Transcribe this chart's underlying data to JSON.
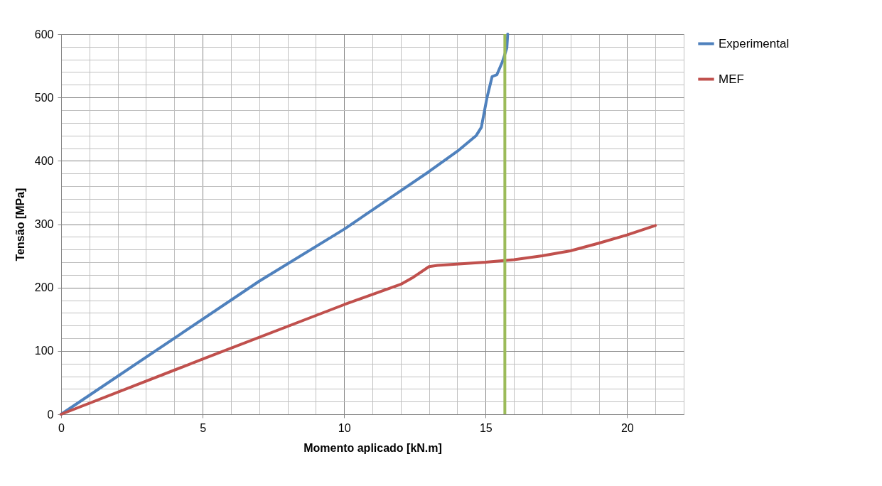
{
  "chart_data": {
    "type": "line",
    "xlabel": "Momento aplicado [kN.m]",
    "ylabel": "Tensão [MPa]",
    "xlim": [
      0,
      22
    ],
    "ylim": [
      0,
      600
    ],
    "xticks": [
      0,
      {
        "value": 1,
        "label": null
      },
      {
        "value": 2,
        "label": null
      },
      {
        "value": 3,
        "label": null
      },
      {
        "value": 4,
        "label": null
      },
      5,
      {
        "value": 6,
        "label": null
      },
      {
        "value": 7,
        "label": null
      },
      {
        "value": 8,
        "label": null
      },
      {
        "value": 9,
        "label": null
      },
      10,
      {
        "value": 11,
        "label": null
      },
      {
        "value": 12,
        "label": null
      },
      {
        "value": 13,
        "label": null
      },
      {
        "value": 14,
        "label": null
      },
      15,
      {
        "value": 16,
        "label": null
      },
      {
        "value": 17,
        "label": null
      },
      {
        "value": 18,
        "label": null
      },
      {
        "value": 19,
        "label": null
      },
      20,
      {
        "value": 21,
        "label": null
      },
      {
        "value": 22,
        "label": null
      }
    ],
    "yticks": [
      0,
      {
        "value": 20,
        "label": null
      },
      {
        "value": 40,
        "label": null
      },
      {
        "value": 60,
        "label": null
      },
      {
        "value": 80,
        "label": null
      },
      100,
      {
        "value": 120,
        "label": null
      },
      {
        "value": 140,
        "label": null
      },
      {
        "value": 160,
        "label": null
      },
      {
        "value": 180,
        "label": null
      },
      200,
      {
        "value": 220,
        "label": null
      },
      {
        "value": 240,
        "label": null
      },
      {
        "value": 260,
        "label": null
      },
      {
        "value": 280,
        "label": null
      },
      300,
      {
        "value": 320,
        "label": null
      },
      {
        "value": 340,
        "label": null
      },
      {
        "value": 360,
        "label": null
      },
      {
        "value": 380,
        "label": null
      },
      400,
      {
        "value": 420,
        "label": null
      },
      {
        "value": 440,
        "label": null
      },
      {
        "value": 460,
        "label": null
      },
      {
        "value": 480,
        "label": null
      },
      500,
      {
        "value": 520,
        "label": null
      },
      {
        "value": 540,
        "label": null
      },
      {
        "value": 560,
        "label": null
      },
      {
        "value": 580,
        "label": null
      },
      600
    ],
    "grid": true,
    "legend": "right",
    "line_style": "solid",
    "marker": "none",
    "series": [
      {
        "name": "Experimental",
        "color": "#4f81bd",
        "x": [
          0,
          7,
          10,
          13,
          14,
          14.67,
          14.85,
          15.05,
          15.23,
          15.4,
          15.6,
          15.75,
          15.78
        ],
        "values": [
          0,
          210,
          292,
          383,
          415,
          440,
          453,
          500,
          533,
          536,
          557,
          578,
          600
        ]
      },
      {
        "name": "MEF",
        "color": "#c0504d",
        "x": [
          0,
          5,
          10,
          12,
          12.4,
          13,
          13.3,
          15,
          16,
          17,
          18,
          19,
          20,
          21
        ],
        "values": [
          0,
          87,
          173,
          205,
          215,
          233,
          235,
          240,
          244,
          250,
          258,
          270,
          283,
          298
        ]
      }
    ],
    "ref_lines": [
      {
        "axis": "x",
        "value": 15.68,
        "color": "#9bbb59"
      }
    ]
  }
}
